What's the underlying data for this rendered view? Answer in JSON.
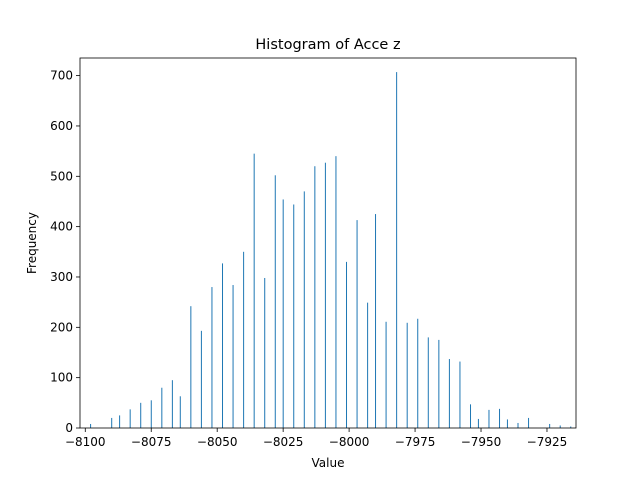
{
  "chart_data": {
    "type": "bar",
    "title": "Histogram of Acce z",
    "xlabel": "Value",
    "ylabel": "Frequency",
    "xlim": [
      -8102,
      -7914
    ],
    "ylim": [
      0,
      735
    ],
    "xticks": [
      -8100,
      -8075,
      -8050,
      -8025,
      -8000,
      -7975,
      -7950,
      -7925
    ],
    "xtick_labels": [
      "−8100",
      "−8075",
      "−8050",
      "−8025",
      "−8000",
      "−7975",
      "−7950",
      "−7925"
    ],
    "yticks": [
      0,
      100,
      200,
      300,
      400,
      500,
      600,
      700
    ],
    "ytick_labels": [
      "0",
      "100",
      "200",
      "300",
      "400",
      "500",
      "600",
      "700"
    ],
    "bar_color": "#1f77b4",
    "bin_width": 0.35,
    "series": [
      {
        "x": [
          -8098,
          -8090,
          -8087,
          -8083,
          -8079,
          -8075,
          -8071,
          -8067,
          -8064,
          -8060,
          -8056,
          -8052,
          -8048,
          -8044,
          -8040,
          -8036,
          -8032,
          -8028,
          -8025,
          -8021,
          -8017,
          -8013,
          -8009,
          -8005,
          -8001,
          -7997,
          -7993,
          -7990,
          -7986,
          -7982,
          -7978,
          -7974,
          -7970,
          -7966,
          -7962,
          -7958,
          -7954,
          -7951,
          -7947,
          -7943,
          -7940,
          -7936,
          -7932,
          -7924,
          -7920,
          -7916
        ],
        "values": [
          8,
          20,
          25,
          37,
          50,
          55,
          80,
          95,
          63,
          242,
          193,
          280,
          327,
          284,
          350,
          545,
          298,
          502,
          454,
          444,
          470,
          520,
          527,
          540,
          330,
          413,
          249,
          425,
          211,
          707,
          209,
          217,
          180,
          175,
          137,
          132,
          47,
          18,
          36,
          38,
          17,
          10,
          20,
          8,
          5,
          3
        ]
      }
    ]
  }
}
